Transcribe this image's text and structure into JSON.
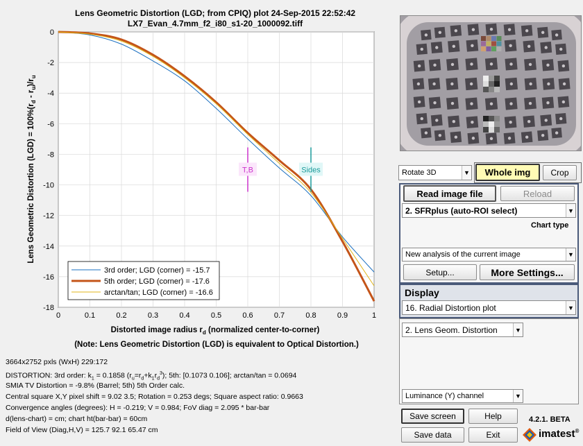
{
  "plot": {
    "title_line1": "Lens Geometric Distortion (LGD; from CPIQ) plot   24-Sep-2015 22:52:42",
    "title_line2": "LX7_Evan_4.7mm_f2_i80_s1-20_1000092.tiff",
    "ylabel": "Lens Geometric Distortion (LGD) = 100%(r",
    "ylabel_sub1": "d",
    "ylabel_mid": " - r",
    "ylabel_sub2": "u",
    "ylabel_end": ")/r",
    "ylabel_sub3": "u",
    "xlabel": "Distorted image radius r",
    "xlabel_sub": "d",
    "xlabel_end": "  (normalized center-to-corner)",
    "note": "(Note: Lens Geometric Distortion (LGD) is equivalent to Optical Distortion.)",
    "marker_tb": "T,B",
    "marker_sides": "Sides",
    "colors": {
      "order3": "#1a6fc0",
      "order5": "#c45419",
      "arctan": "#e0b419",
      "tb": "#cc33cc",
      "sides": "#1a9a9a"
    }
  },
  "chart_data": {
    "type": "line",
    "xlim": [
      0,
      1
    ],
    "ylim": [
      -18,
      0
    ],
    "xticks": [
      "0",
      "0.1",
      "0.2",
      "0.3",
      "0.4",
      "0.5",
      "0.6",
      "0.7",
      "0.8",
      "0.9",
      "1"
    ],
    "yticks": [
      "0",
      "-2",
      "-4",
      "-6",
      "-8",
      "-10",
      "-12",
      "-14",
      "-16",
      "-18"
    ],
    "grid": true,
    "legend_position": "bottom-left",
    "markers": [
      {
        "label": "T,B",
        "x": 0.6,
        "y": -9.0
      },
      {
        "label": "Sides",
        "x": 0.8,
        "y": -9.0
      }
    ],
    "series": [
      {
        "name": "3rd order;   LGD (corner) = -15.7",
        "style": "thin",
        "x": [
          0,
          0.1,
          0.2,
          0.3,
          0.4,
          0.5,
          0.6,
          0.7,
          0.8,
          0.9,
          1.0
        ],
        "y": [
          0,
          -0.2,
          -0.8,
          -1.9,
          -3.2,
          -5.0,
          -7.0,
          -8.9,
          -10.7,
          -13.4,
          -15.7
        ]
      },
      {
        "name": "5th order;   LGD (corner) = -17.6",
        "style": "thick",
        "x": [
          0,
          0.1,
          0.2,
          0.3,
          0.4,
          0.5,
          0.6,
          0.7,
          0.8,
          0.9,
          1.0
        ],
        "y": [
          0,
          -0.1,
          -0.5,
          -1.5,
          -2.9,
          -4.6,
          -6.6,
          -8.4,
          -10.3,
          -13.7,
          -17.6
        ]
      },
      {
        "name": "arctan/tan; LGD (corner) = -16.6",
        "style": "thin",
        "x": [
          0,
          0.1,
          0.2,
          0.3,
          0.4,
          0.5,
          0.6,
          0.7,
          0.8,
          0.9,
          1.0
        ],
        "y": [
          0,
          -0.15,
          -0.6,
          -1.6,
          -3.0,
          -4.7,
          -6.7,
          -8.6,
          -10.5,
          -13.5,
          -16.6
        ]
      }
    ]
  },
  "info": {
    "line1": "3664x2752 pxls (WxH) 229:172",
    "line2_a": "DISTORTION:  3rd order:  k",
    "line2_b": "1",
    "line2_c": " = 0.1858  (r",
    "line2_d": "u",
    "line2_e": "=r",
    "line2_f": "d",
    "line2_g": "+k",
    "line2_h": "1",
    "line2_i": "r",
    "line2_j": "d",
    "line2_k": "3",
    "line2_l": ");   5th: [0.1073  0.106];   arctan/tan = 0.0694",
    "line3": "SMIA TV Distortion = -9.8%  (Barrel; 5th)   5th Order calc.",
    "line4": "Central square X,Y pixel shift = 9.02  3.5;   Rotation = 0.253 degs;   Square aspect ratio: 0.9663",
    "line5": "Convergence angles (degrees):  H = -0.219;  V = 0.984;   FoV diag = 2.095 * bar-bar",
    "line6": "d(lens-chart) =  cm;  chart ht(bar-bar) = 60cm",
    "line7": "Field of View (Diag,H,V) = 125.7       92.1      65.47 cm"
  },
  "controls": {
    "rotate_select": "Rotate 3D",
    "whole_img": "Whole img",
    "crop": "Crop",
    "read_image_file": "Read image file",
    "reload": "Reload",
    "chart_select": "2.  SFRplus (auto-ROI select)",
    "chart_type_label": "Chart type",
    "analysis_select": "New analysis of the current image",
    "setup": "Setup...",
    "more_settings": "More Settings...",
    "display_label": "Display",
    "display_select": "16. Radial Distortion plot",
    "plot_select": "2.  Lens Geom. Distortion",
    "channel_select": "Luminance (Y) channel",
    "save_screen": "Save screen",
    "help": "Help",
    "save_data": "Save data",
    "exit": "Exit",
    "version": "4.2.1. BETA",
    "brand": "imatest",
    "brand_mark": "®"
  }
}
